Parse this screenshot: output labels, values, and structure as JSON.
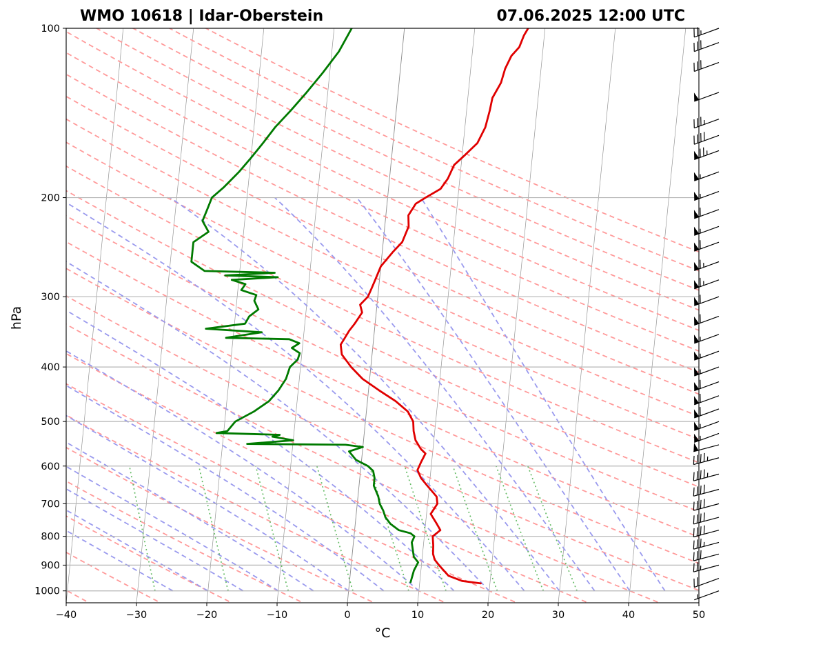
{
  "header": {
    "station": "WMO 10618 | Idar-Oberstein",
    "datetime": "07.06.2025 12:00 UTC"
  },
  "chart_data": {
    "type": "line",
    "diagram": "skew-T log-p",
    "xlabel": "°C",
    "ylabel": "hPa",
    "xlim": [
      -40,
      50
    ],
    "ylim_hpa": [
      1050,
      100
    ],
    "x_ticks": [
      -40,
      -30,
      -20,
      -10,
      0,
      10,
      20,
      30,
      40,
      50
    ],
    "y_ticks": [
      100,
      200,
      300,
      400,
      500,
      600,
      700,
      800,
      900,
      1000
    ],
    "x_tick_labels": [
      "−40",
      "−30",
      "−20",
      "−10",
      "0",
      "10",
      "20",
      "30",
      "40",
      "50"
    ],
    "y_tick_labels": [
      "100",
      "200",
      "300",
      "400",
      "500",
      "600",
      "700",
      "800",
      "900",
      "1000"
    ],
    "grid": true,
    "colors": {
      "temperature": "#e00000",
      "dewpoint": "#007a00",
      "dry_adiabat": "#ff9a9a",
      "moist_adiabat": "#9a9aee",
      "mixing_ratio": "#66bb66",
      "isotherm": "#8a8a8a",
      "grid": "#b5b5b5"
    },
    "series": [
      {
        "name": "Temperature",
        "color": "#e00000",
        "points": [
          [
            970,
            18.7
          ],
          [
            960,
            16.0
          ],
          [
            940,
            14.0
          ],
          [
            900,
            12.5
          ],
          [
            880,
            11.8
          ],
          [
            860,
            11.5
          ],
          [
            830,
            11.4
          ],
          [
            800,
            11.2
          ],
          [
            780,
            12.2
          ],
          [
            760,
            11.6
          ],
          [
            730,
            10.6
          ],
          [
            700,
            11.4
          ],
          [
            680,
            11.2
          ],
          [
            650,
            9.7
          ],
          [
            630,
            8.7
          ],
          [
            610,
            8.1
          ],
          [
            590,
            8.5
          ],
          [
            570,
            9.0
          ],
          [
            560,
            8.3
          ],
          [
            540,
            7.4
          ],
          [
            520,
            7.0
          ],
          [
            500,
            6.8
          ],
          [
            480,
            5.9
          ],
          [
            460,
            4.0
          ],
          [
            440,
            1.5
          ],
          [
            420,
            -1.0
          ],
          [
            400,
            -2.8
          ],
          [
            380,
            -4.3
          ],
          [
            365,
            -4.6
          ],
          [
            355,
            -4.1
          ],
          [
            345,
            -3.6
          ],
          [
            335,
            -2.9
          ],
          [
            320,
            -2.0
          ],
          [
            310,
            -2.4
          ],
          [
            300,
            -1.4
          ],
          [
            290,
            -1.0
          ],
          [
            280,
            -0.6
          ],
          [
            265,
            0.0
          ],
          [
            250,
            1.5
          ],
          [
            240,
            2.7
          ],
          [
            225,
            3.4
          ],
          [
            215,
            3.2
          ],
          [
            205,
            4.1
          ],
          [
            200,
            5.4
          ],
          [
            193,
            7.4
          ],
          [
            185,
            8.3
          ],
          [
            175,
            9.0
          ],
          [
            168,
            10.4
          ],
          [
            160,
            12.0
          ],
          [
            150,
            12.9
          ],
          [
            140,
            13.3
          ],
          [
            133,
            13.5
          ],
          [
            125,
            14.5
          ],
          [
            118,
            14.9
          ],
          [
            112,
            15.6
          ],
          [
            108,
            16.6
          ],
          [
            103,
            17.1
          ],
          [
            100,
            17.6
          ]
        ]
      },
      {
        "name": "Dewpoint",
        "color": "#007a00",
        "points": [
          [
            965,
            8.7
          ],
          [
            950,
            8.8
          ],
          [
            920,
            9.0
          ],
          [
            890,
            9.5
          ],
          [
            870,
            8.8
          ],
          [
            850,
            8.6
          ],
          [
            820,
            8.3
          ],
          [
            800,
            8.6
          ],
          [
            790,
            8.0
          ],
          [
            780,
            6.3
          ],
          [
            760,
            5.0
          ],
          [
            740,
            4.2
          ],
          [
            720,
            3.8
          ],
          [
            700,
            3.2
          ],
          [
            680,
            2.9
          ],
          [
            650,
            2.1
          ],
          [
            630,
            2.1
          ],
          [
            612,
            1.8
          ],
          [
            600,
            1.0
          ],
          [
            585,
            -0.8
          ],
          [
            565,
            -1.9
          ],
          [
            555,
            0.0
          ],
          [
            550,
            -2.5
          ],
          [
            548,
            -16.5
          ],
          [
            540,
            -10.0
          ],
          [
            532,
            -13.0
          ],
          [
            528,
            -12.0
          ],
          [
            524,
            -21.0
          ],
          [
            520,
            -19.5
          ],
          [
            500,
            -18.5
          ],
          [
            480,
            -16.0
          ],
          [
            460,
            -14.0
          ],
          [
            440,
            -12.8
          ],
          [
            420,
            -11.9
          ],
          [
            400,
            -11.5
          ],
          [
            388,
            -10.5
          ],
          [
            378,
            -10.3
          ],
          [
            370,
            -11.5
          ],
          [
            363,
            -10.5
          ],
          [
            357,
            -12.0
          ],
          [
            355,
            -21.0
          ],
          [
            347,
            -16.0
          ],
          [
            342,
            -24.0
          ],
          [
            335,
            -18.5
          ],
          [
            325,
            -18.0
          ],
          [
            316,
            -16.8
          ],
          [
            305,
            -17.5
          ],
          [
            298,
            -17.3
          ],
          [
            292,
            -19.5
          ],
          [
            285,
            -19.0
          ],
          [
            280,
            -21.0
          ],
          [
            277,
            -14.5
          ],
          [
            275,
            -22.0
          ],
          [
            272,
            -15.0
          ],
          [
            270,
            -25.0
          ],
          [
            260,
            -27.0
          ],
          [
            240,
            -27.0
          ],
          [
            230,
            -25.0
          ],
          [
            220,
            -26.0
          ],
          [
            210,
            -25.5
          ],
          [
            200,
            -25.0
          ],
          [
            192,
            -23.5
          ],
          [
            180,
            -21.5
          ],
          [
            170,
            -20.0
          ],
          [
            160,
            -18.5
          ],
          [
            150,
            -17.0
          ],
          [
            140,
            -15.0
          ],
          [
            130,
            -13.0
          ],
          [
            120,
            -11.0
          ],
          [
            110,
            -9.0
          ],
          [
            100,
            -7.5
          ]
        ]
      }
    ],
    "wind_barbs": [
      {
        "p": 1000,
        "dir": 250,
        "kt": 5
      },
      {
        "p": 950,
        "dir": 250,
        "kt": 20
      },
      {
        "p": 900,
        "dir": 255,
        "kt": 25
      },
      {
        "p": 860,
        "dir": 255,
        "kt": 30
      },
      {
        "p": 820,
        "dir": 255,
        "kt": 35
      },
      {
        "p": 780,
        "dir": 255,
        "kt": 40
      },
      {
        "p": 740,
        "dir": 255,
        "kt": 40
      },
      {
        "p": 700,
        "dir": 255,
        "kt": 40
      },
      {
        "p": 660,
        "dir": 255,
        "kt": 40
      },
      {
        "p": 620,
        "dir": 255,
        "kt": 45
      },
      {
        "p": 580,
        "dir": 255,
        "kt": 45
      },
      {
        "p": 550,
        "dir": 255,
        "kt": 50
      },
      {
        "p": 525,
        "dir": 250,
        "kt": 55
      },
      {
        "p": 500,
        "dir": 250,
        "kt": 55
      },
      {
        "p": 475,
        "dir": 250,
        "kt": 60
      },
      {
        "p": 450,
        "dir": 250,
        "kt": 60
      },
      {
        "p": 425,
        "dir": 250,
        "kt": 60
      },
      {
        "p": 400,
        "dir": 250,
        "kt": 55
      },
      {
        "p": 375,
        "dir": 250,
        "kt": 55
      },
      {
        "p": 350,
        "dir": 250,
        "kt": 55
      },
      {
        "p": 325,
        "dir": 250,
        "kt": 60
      },
      {
        "p": 300,
        "dir": 250,
        "kt": 60
      },
      {
        "p": 280,
        "dir": 250,
        "kt": 65
      },
      {
        "p": 260,
        "dir": 250,
        "kt": 65
      },
      {
        "p": 240,
        "dir": 250,
        "kt": 60
      },
      {
        "p": 225,
        "dir": 250,
        "kt": 55
      },
      {
        "p": 210,
        "dir": 250,
        "kt": 60
      },
      {
        "p": 195,
        "dir": 250,
        "kt": 55
      },
      {
        "p": 180,
        "dir": 250,
        "kt": 55
      },
      {
        "p": 165,
        "dir": 250,
        "kt": 75
      },
      {
        "p": 155,
        "dir": 250,
        "kt": 40
      },
      {
        "p": 145,
        "dir": 250,
        "kt": 35
      },
      {
        "p": 130,
        "dir": 250,
        "kt": 50
      },
      {
        "p": 115,
        "dir": 250,
        "kt": 30
      },
      {
        "p": 106,
        "dir": 250,
        "kt": 30
      },
      {
        "p": 100,
        "dir": 250,
        "kt": 25
      }
    ]
  }
}
